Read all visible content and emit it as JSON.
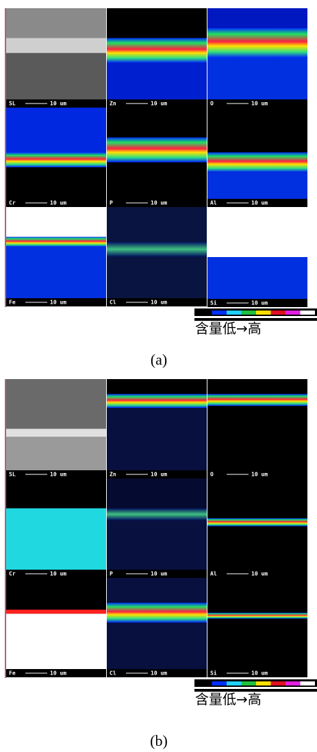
{
  "figures": [
    {
      "labels": [
        "SL",
        "Zn",
        "O",
        "Cr",
        "P",
        "Al",
        "Fe",
        "Cl",
        "Si"
      ],
      "caption": "(a)"
    },
    {
      "labels": [
        "SL",
        "Zn",
        "O",
        "Cr",
        "P",
        "Al",
        "Fe",
        "Cl",
        "Si"
      ],
      "caption": "(b)"
    }
  ],
  "scale": "10 um",
  "legend": "含量低→高"
}
